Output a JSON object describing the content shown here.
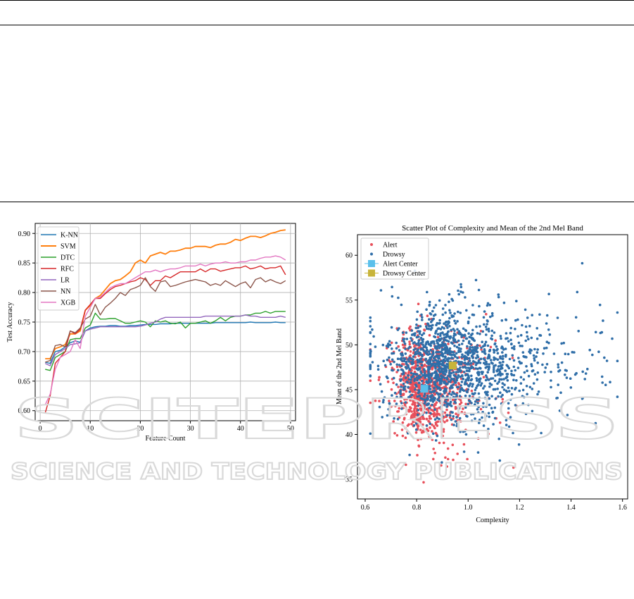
{
  "watermark": {
    "main": "SCITEPRESS",
    "sub": "SCIENCE AND TECHNOLOGY PUBLICATIONS"
  },
  "colors": {
    "knn": "#1f77b4",
    "svm": "#ff7f0e",
    "dtc": "#2ca02c",
    "rfc": "#d62728",
    "lr": "#9467bd",
    "nn": "#8c564b",
    "xgb": "#e377c2",
    "alert": "#e8505b",
    "drowsy": "#2f6ea8",
    "alert_center": "#5bc0eb",
    "drowsy_center": "#c8b43a"
  },
  "chart_data": [
    {
      "type": "line",
      "title": "",
      "xlabel": "Feature Count",
      "ylabel": "Test Accuracy",
      "xlim": [
        -1,
        51
      ],
      "ylim": [
        0.583,
        0.917
      ],
      "xticks": [
        "0",
        "10",
        "20",
        "30",
        "40",
        "50"
      ],
      "yticks": [
        "0.60",
        "0.65",
        "0.70",
        "0.75",
        "0.80",
        "0.85",
        "0.90"
      ],
      "grid": true,
      "legend_position": "top-left",
      "x": [
        1,
        2,
        3,
        4,
        5,
        6,
        7,
        8,
        9,
        10,
        11,
        12,
        13,
        14,
        15,
        16,
        17,
        18,
        19,
        20,
        21,
        22,
        23,
        24,
        25,
        26,
        27,
        28,
        29,
        30,
        31,
        32,
        33,
        34,
        35,
        36,
        37,
        38,
        39,
        40,
        41,
        42,
        43,
        44,
        45,
        46,
        47,
        48,
        49
      ],
      "series": [
        {
          "name": "K-NN",
          "color_key": "knn",
          "values": [
            0.682,
            0.68,
            0.7,
            0.702,
            0.708,
            0.715,
            0.718,
            0.716,
            0.735,
            0.74,
            0.742,
            0.743,
            0.743,
            0.744,
            0.744,
            0.743,
            0.743,
            0.744,
            0.744,
            0.745,
            0.746,
            0.746,
            0.746,
            0.747,
            0.747,
            0.747,
            0.748,
            0.748,
            0.748,
            0.748,
            0.748,
            0.748,
            0.748,
            0.748,
            0.749,
            0.749,
            0.749,
            0.749,
            0.749,
            0.749,
            0.749,
            0.75,
            0.749,
            0.749,
            0.749,
            0.749,
            0.75,
            0.749,
            0.749
          ]
        },
        {
          "name": "SVM",
          "color_key": "svm",
          "values": [
            0.688,
            0.688,
            0.705,
            0.708,
            0.712,
            0.73,
            0.73,
            0.735,
            0.77,
            0.778,
            0.79,
            0.795,
            0.805,
            0.815,
            0.82,
            0.822,
            0.828,
            0.835,
            0.85,
            0.855,
            0.85,
            0.862,
            0.865,
            0.868,
            0.865,
            0.87,
            0.87,
            0.872,
            0.875,
            0.875,
            0.878,
            0.878,
            0.878,
            0.876,
            0.88,
            0.882,
            0.882,
            0.885,
            0.89,
            0.888,
            0.892,
            0.895,
            0.895,
            0.893,
            0.896,
            0.9,
            0.902,
            0.905,
            0.906
          ]
        },
        {
          "name": "DTC",
          "color_key": "dtc",
          "values": [
            0.67,
            0.668,
            0.69,
            0.695,
            0.7,
            0.72,
            0.722,
            0.722,
            0.74,
            0.745,
            0.765,
            0.755,
            0.755,
            0.756,
            0.756,
            0.752,
            0.748,
            0.748,
            0.75,
            0.752,
            0.75,
            0.742,
            0.752,
            0.75,
            0.752,
            0.748,
            0.747,
            0.75,
            0.74,
            0.748,
            0.748,
            0.75,
            0.752,
            0.748,
            0.752,
            0.758,
            0.752,
            0.758,
            0.76,
            0.76,
            0.762,
            0.762,
            0.765,
            0.765,
            0.768,
            0.765,
            0.768,
            0.768,
            0.768
          ]
        },
        {
          "name": "RFC",
          "color_key": "rfc",
          "values": [
            0.596,
            0.625,
            0.68,
            0.69,
            0.7,
            0.735,
            0.73,
            0.738,
            0.77,
            0.78,
            0.79,
            0.79,
            0.798,
            0.805,
            0.81,
            0.812,
            0.815,
            0.818,
            0.82,
            0.825,
            0.822,
            0.812,
            0.82,
            0.82,
            0.828,
            0.825,
            0.83,
            0.835,
            0.835,
            0.835,
            0.835,
            0.84,
            0.835,
            0.84,
            0.84,
            0.836,
            0.838,
            0.84,
            0.842,
            0.842,
            0.845,
            0.84,
            0.842,
            0.845,
            0.84,
            0.842,
            0.842,
            0.845,
            0.83
          ]
        },
        {
          "name": "LR",
          "color_key": "lr",
          "values": [
            0.68,
            0.676,
            0.695,
            0.7,
            0.705,
            0.712,
            0.713,
            0.715,
            0.735,
            0.738,
            0.74,
            0.742,
            0.742,
            0.742,
            0.742,
            0.742,
            0.742,
            0.742,
            0.742,
            0.743,
            0.745,
            0.748,
            0.75,
            0.755,
            0.758,
            0.758,
            0.758,
            0.758,
            0.758,
            0.758,
            0.758,
            0.758,
            0.76,
            0.76,
            0.76,
            0.76,
            0.76,
            0.76,
            0.76,
            0.76,
            0.762,
            0.76,
            0.76,
            0.758,
            0.758,
            0.758,
            0.758,
            0.76,
            0.758
          ]
        },
        {
          "name": "NN",
          "color_key": "nn",
          "values": [
            0.682,
            0.685,
            0.71,
            0.712,
            0.708,
            0.735,
            0.732,
            0.74,
            0.755,
            0.76,
            0.78,
            0.762,
            0.775,
            0.782,
            0.79,
            0.8,
            0.795,
            0.805,
            0.808,
            0.812,
            0.825,
            0.81,
            0.802,
            0.818,
            0.82,
            0.81,
            0.812,
            0.815,
            0.818,
            0.82,
            0.822,
            0.82,
            0.818,
            0.812,
            0.815,
            0.812,
            0.82,
            0.815,
            0.81,
            0.815,
            0.818,
            0.808,
            0.822,
            0.825,
            0.818,
            0.822,
            0.818,
            0.815,
            0.82
          ]
        },
        {
          "name": "XGB",
          "color_key": "xgb",
          "values": [
            0.61,
            0.628,
            0.67,
            0.69,
            0.695,
            0.7,
            0.72,
            0.705,
            0.76,
            0.775,
            0.79,
            0.792,
            0.8,
            0.808,
            0.812,
            0.815,
            0.815,
            0.82,
            0.825,
            0.83,
            0.835,
            0.835,
            0.838,
            0.835,
            0.838,
            0.84,
            0.84,
            0.842,
            0.845,
            0.845,
            0.845,
            0.848,
            0.845,
            0.848,
            0.85,
            0.85,
            0.852,
            0.85,
            0.85,
            0.852,
            0.852,
            0.855,
            0.855,
            0.858,
            0.86,
            0.86,
            0.862,
            0.86,
            0.855
          ]
        }
      ]
    },
    {
      "type": "scatter",
      "title": "Scatter Plot of Complexity and Mean of the 2nd Mel Band",
      "xlabel": "Complexity",
      "ylabel": "Mean of the 2nd Mel Band",
      "xlim": [
        0.57,
        1.62
      ],
      "ylim": [
        32.8,
        62.3
      ],
      "xticks": [
        "0.6",
        "0.8",
        "1.0",
        "1.2",
        "1.4",
        "1.6"
      ],
      "yticks": [
        "35",
        "40",
        "45",
        "50",
        "55",
        "60"
      ],
      "grid": false,
      "legend_position": "top-left",
      "legend": [
        "Alert",
        "Drowsy",
        "Alert Center",
        "Drowsy Center"
      ],
      "clusters": [
        {
          "name": "Alert",
          "color_key": "alert",
          "center": [
            0.83,
            45.1
          ],
          "spread": [
            0.09,
            3.0
          ]
        },
        {
          "name": "Drowsy",
          "color_key": "drowsy",
          "center": [
            0.94,
            47.7
          ],
          "spread": [
            0.15,
            3.2
          ]
        }
      ],
      "centers": [
        {
          "name": "Alert Center",
          "x": 0.83,
          "y": 45.1,
          "color_key": "alert_center"
        },
        {
          "name": "Drowsy Center",
          "x": 0.94,
          "y": 47.7,
          "color_key": "drowsy_center"
        }
      ]
    }
  ]
}
